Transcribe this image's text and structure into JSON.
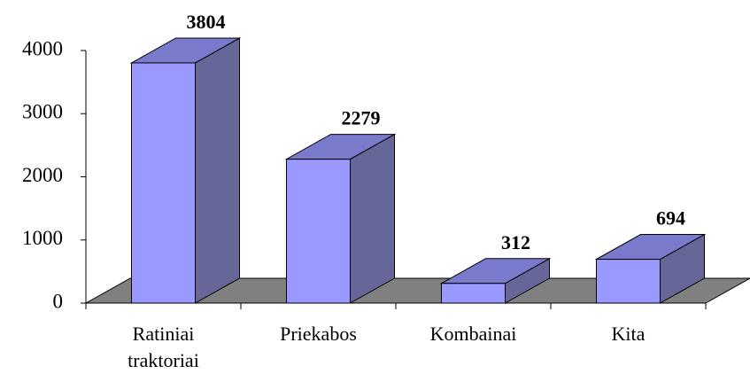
{
  "chart_data": {
    "type": "bar3d",
    "categories": [
      "Ratiniai traktoriai",
      "Priekabos",
      "Kombainai",
      "Kita"
    ],
    "values": [
      3804,
      2279,
      312,
      694
    ],
    "color": "#9999ff",
    "ylim": [
      0,
      4000
    ],
    "yticks": [
      0,
      1000,
      2000,
      3000,
      4000
    ]
  }
}
